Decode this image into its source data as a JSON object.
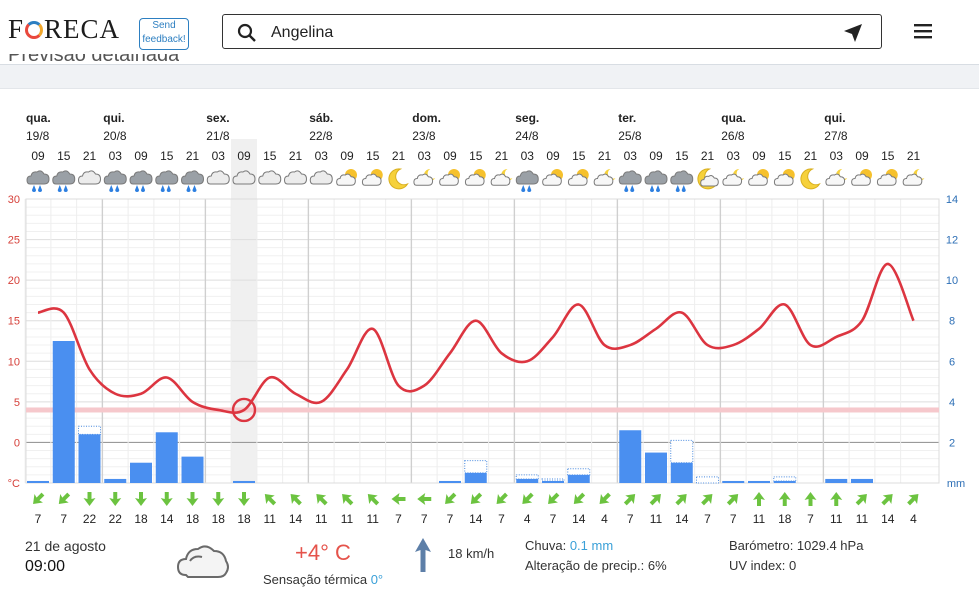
{
  "header": {
    "logo": "FORECA",
    "feedback": "Send feedback!",
    "search_value": "Angelina"
  },
  "page_title": "Previsão detalhada",
  "chart_data": {
    "type": "line",
    "days": [
      {
        "name": "qua.",
        "date": "19/8"
      },
      {
        "name": "qui.",
        "date": "20/8"
      },
      {
        "name": "sex.",
        "date": "21/8"
      },
      {
        "name": "sáb.",
        "date": "22/8"
      },
      {
        "name": "dom.",
        "date": "23/8"
      },
      {
        "name": "seg.",
        "date": "24/8"
      },
      {
        "name": "ter.",
        "date": "25/8"
      },
      {
        "name": "qua.",
        "date": "26/8"
      },
      {
        "name": "qui.",
        "date": "27/8"
      }
    ],
    "hours": [
      "09",
      "15",
      "21",
      "03",
      "09",
      "15",
      "21",
      "03",
      "09",
      "15",
      "21",
      "03",
      "09",
      "15",
      "21",
      "03",
      "09",
      "15",
      "21",
      "03",
      "09",
      "15",
      "21",
      "03",
      "09",
      "15",
      "21",
      "03",
      "09",
      "15",
      "21",
      "03",
      "09",
      "15",
      "21"
    ],
    "icons": [
      "rain",
      "rain",
      "cloud",
      "rain",
      "rain",
      "rain",
      "rain",
      "cloud",
      "cloud",
      "cloud",
      "cloud",
      "cloud",
      "partly-sun",
      "partly-sun",
      "moon",
      "partly-moon",
      "partly-sun",
      "partly-sun",
      "partly-moon",
      "rain",
      "partly-sun",
      "partly-sun",
      "partly-moon",
      "rain",
      "rain",
      "rain",
      "moon-cloud",
      "partly-moon",
      "partly-sun",
      "partly-sun",
      "moon",
      "partly-moon",
      "partly-sun",
      "partly-sun",
      "partly-moon"
    ],
    "temperature_c": [
      16,
      16,
      9,
      6,
      6,
      8,
      5,
      4,
      4,
      8,
      6,
      5,
      9,
      14,
      7,
      7,
      11,
      15,
      11,
      10,
      13,
      17,
      12,
      12,
      14,
      16,
      12,
      12,
      14,
      17,
      12,
      13,
      15,
      22,
      15
    ],
    "temperature_axis": {
      "min": -5,
      "max": 30,
      "ticks": [
        30,
        25,
        20,
        15,
        10,
        5,
        0,
        -5
      ],
      "unit": "°C"
    },
    "precip_mm": [
      0.1,
      7,
      2.4,
      0.2,
      1,
      2.5,
      1.3,
      0,
      0.1,
      0,
      0,
      0,
      0,
      0,
      0,
      0,
      0.1,
      0.5,
      0,
      0.2,
      0.1,
      0.4,
      0,
      2.6,
      1.5,
      1,
      0,
      0.1,
      0.1,
      0.1,
      0,
      0.2,
      0.2,
      0,
      0
    ],
    "precip_potential_mm": [
      0,
      0,
      0.4,
      0,
      0,
      0,
      0,
      0,
      0,
      0,
      0,
      0,
      0,
      0,
      0,
      0,
      0,
      0.6,
      0,
      0.2,
      0.1,
      0.3,
      0,
      0,
      0,
      1.1,
      0.3,
      0,
      0,
      0.2,
      0,
      0,
      0,
      0,
      0
    ],
    "precip_axis": {
      "min": 0,
      "max": 14,
      "ticks": [
        14,
        12,
        10,
        8,
        6,
        4,
        2
      ],
      "unit": "mm"
    },
    "feels_like_line_c": 4,
    "selected_index": 8,
    "wind_dir": [
      "sw",
      "sw",
      "s",
      "s",
      "s",
      "s",
      "s",
      "s",
      "s",
      "nw",
      "nw",
      "nw",
      "nw",
      "nw",
      "w",
      "w",
      "sw",
      "sw",
      "sw",
      "sw",
      "sw",
      "sw",
      "sw",
      "ne",
      "ne",
      "ne",
      "ne",
      "ne",
      "n",
      "n",
      "n",
      "n",
      "ne",
      "ne",
      "ne"
    ],
    "wind_kmh": [
      7,
      7,
      22,
      22,
      18,
      14,
      18,
      18,
      18,
      11,
      14,
      11,
      11,
      11,
      7,
      7,
      7,
      14,
      7,
      4,
      7,
      14,
      4,
      7,
      11,
      14,
      7,
      7,
      11,
      18,
      7,
      11,
      11,
      14,
      4
    ]
  },
  "details": {
    "date": "21 de agosto",
    "time": "09:00",
    "temperature": "+4° C",
    "feels_like_label": "Sensação térmica",
    "feels_like_value": "0°",
    "wind": "18 km/h",
    "rain_label": "Chuva:",
    "rain_value": "0.1 mm",
    "precip_change": "Alteração de precip.: 6%",
    "pressure": "Barómetro: 1029.4 hPa",
    "uv": "UV index: 0"
  }
}
